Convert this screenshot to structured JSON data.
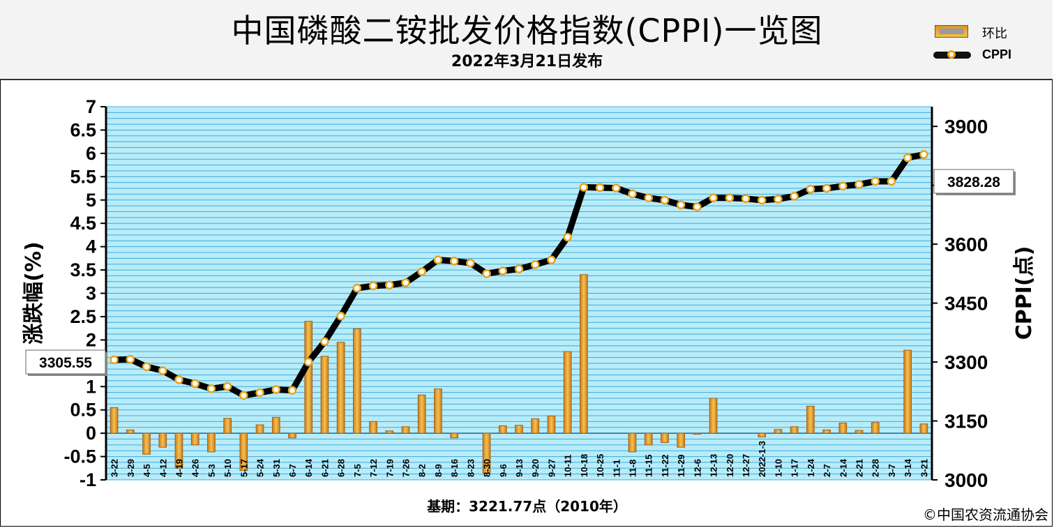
{
  "header": {
    "title": "中国磷酸二铵批发价格指数(CPPI)一览图",
    "subtitle": "2022年3月21日发布"
  },
  "legend": {
    "bar_label": "环比",
    "line_label": "CPPI"
  },
  "footer": {
    "base_note": "基期：3221.77点（2010年）",
    "copyright": "©中国农资流通协会"
  },
  "colors": {
    "plot_bg": "#b8ecf8",
    "grid": "#2a9fd6",
    "bar": "#e0a030",
    "bar_edge": "#a0601a",
    "line": "#000000",
    "marker_fill": "#ffffff",
    "marker_edge": "#e8a21c"
  },
  "chart_data": {
    "type": "bar+line",
    "categories": [
      "3-22",
      "3-29",
      "4-5",
      "4-12",
      "4-19",
      "4-26",
      "5-3",
      "5-10",
      "5-17",
      "5-24",
      "5-31",
      "6-7",
      "6-14",
      "6-21",
      "6-28",
      "7-5",
      "7-12",
      "7-19",
      "7-26",
      "8-2",
      "8-9",
      "8-16",
      "8-23",
      "8-30",
      "9-6",
      "9-13",
      "9-20",
      "9-27",
      "10-11",
      "10-18",
      "10-25",
      "11-1",
      "11-8",
      "11-15",
      "11-22",
      "11-29",
      "12-6",
      "12-13",
      "12-20",
      "12-27",
      "2022-1-3",
      "1-10",
      "1-17",
      "1-24",
      "2-7",
      "2-14",
      "2-21",
      "2-28",
      "3-7",
      "3-14",
      "3-21"
    ],
    "series": [
      {
        "name": "环比",
        "axis": "left",
        "type": "bar",
        "values": [
          0.55,
          0.07,
          -0.45,
          -0.3,
          -0.75,
          -0.25,
          -0.4,
          0.32,
          -0.8,
          0.18,
          0.34,
          -0.1,
          2.4,
          1.65,
          1.95,
          2.24,
          0.25,
          0.05,
          0.14,
          0.82,
          0.95,
          -0.1,
          0.0,
          -0.85,
          0.16,
          0.17,
          0.31,
          0.37,
          1.75,
          3.4,
          0.0,
          0.0,
          -0.4,
          -0.25,
          -0.2,
          -0.3,
          -0.02,
          0.75,
          0.0,
          0.0,
          -0.08,
          0.08,
          0.14,
          0.58,
          0.07,
          0.22,
          0.06,
          0.23,
          0.0,
          1.78,
          0.2
        ]
      },
      {
        "name": "CPPI",
        "axis": "right",
        "type": "line",
        "values": [
          3305.55,
          3307,
          3288,
          3278,
          3255,
          3245,
          3232,
          3238,
          3215,
          3222,
          3230,
          3228,
          3300,
          3352,
          3417,
          3488,
          3494,
          3496,
          3502,
          3530,
          3560,
          3557,
          3552,
          3525,
          3532,
          3537,
          3548,
          3560,
          3618,
          3745,
          3744,
          3743,
          3728,
          3718,
          3712,
          3700,
          3695,
          3718,
          3718,
          3716,
          3712,
          3715,
          3722,
          3740,
          3742,
          3748,
          3752,
          3760,
          3760,
          3820,
          3828.28
        ]
      }
    ],
    "left_axis": {
      "label": "涨跌幅(%)",
      "min": -1,
      "max": 7,
      "ticks": [
        -1,
        -0.5,
        0,
        0.5,
        1,
        1.5,
        2,
        2.5,
        3,
        3.5,
        4,
        4.5,
        5,
        5.5,
        6,
        6.5,
        7
      ]
    },
    "right_axis": {
      "label": "CPPI(点)",
      "min": 3000,
      "max": 3950,
      "ticks": [
        3000,
        3150,
        3300,
        3450,
        3600,
        3750,
        3900
      ]
    },
    "annotations": [
      {
        "text": "3305.55",
        "point": "first"
      },
      {
        "text": "3828.28",
        "point": "last"
      }
    ],
    "grid": true
  }
}
